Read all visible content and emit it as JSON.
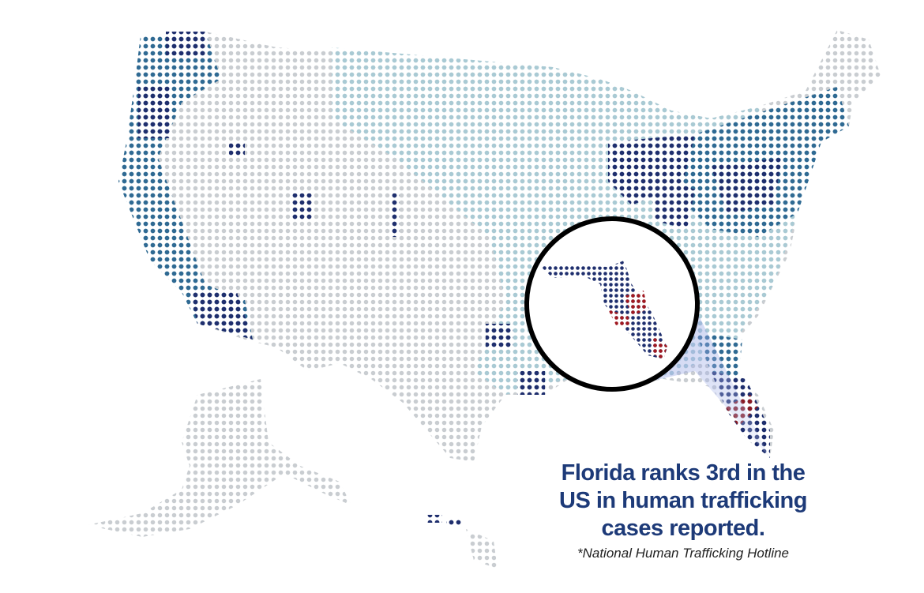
{
  "callout": {
    "lines": [
      "Florida ranks 3rd in the",
      "US in human trafficking",
      "cases reported."
    ],
    "source": "*National Human Trafficking Hotline"
  }
}
